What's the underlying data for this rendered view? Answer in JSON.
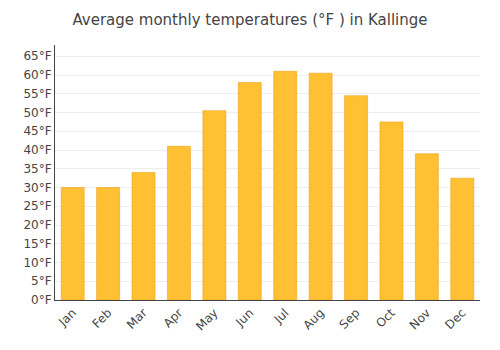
{
  "chart_data": {
    "type": "bar",
    "title": "Average monthly temperatures (°F ) in Kallinge",
    "categories": [
      "Jan",
      "Feb",
      "Mar",
      "Apr",
      "May",
      "Jun",
      "Jul",
      "Aug",
      "Sep",
      "Oct",
      "Nov",
      "Dec"
    ],
    "values": [
      30,
      30,
      34,
      41,
      50.5,
      58,
      61,
      60.5,
      54.5,
      47.5,
      39,
      32.5
    ],
    "color": "#FFC033",
    "ylim": [
      0,
      68
    ],
    "yticks": [
      {
        "value": 0,
        "label": "0°F"
      },
      {
        "value": 5,
        "label": "5°F"
      },
      {
        "value": 10,
        "label": "10°F"
      },
      {
        "value": 15,
        "label": "15°F"
      },
      {
        "value": 20,
        "label": "20°F"
      },
      {
        "value": 25,
        "label": "25°F"
      },
      {
        "value": 30,
        "label": "30°F"
      },
      {
        "value": 35,
        "label": "35°F"
      },
      {
        "value": 40,
        "label": "40°F"
      },
      {
        "value": 45,
        "label": "45°F"
      },
      {
        "value": 50,
        "label": "50°F"
      },
      {
        "value": 55,
        "label": "55°F"
      },
      {
        "value": 60,
        "label": "60°F"
      },
      {
        "value": 65,
        "label": "65°F"
      }
    ],
    "grid": true
  }
}
